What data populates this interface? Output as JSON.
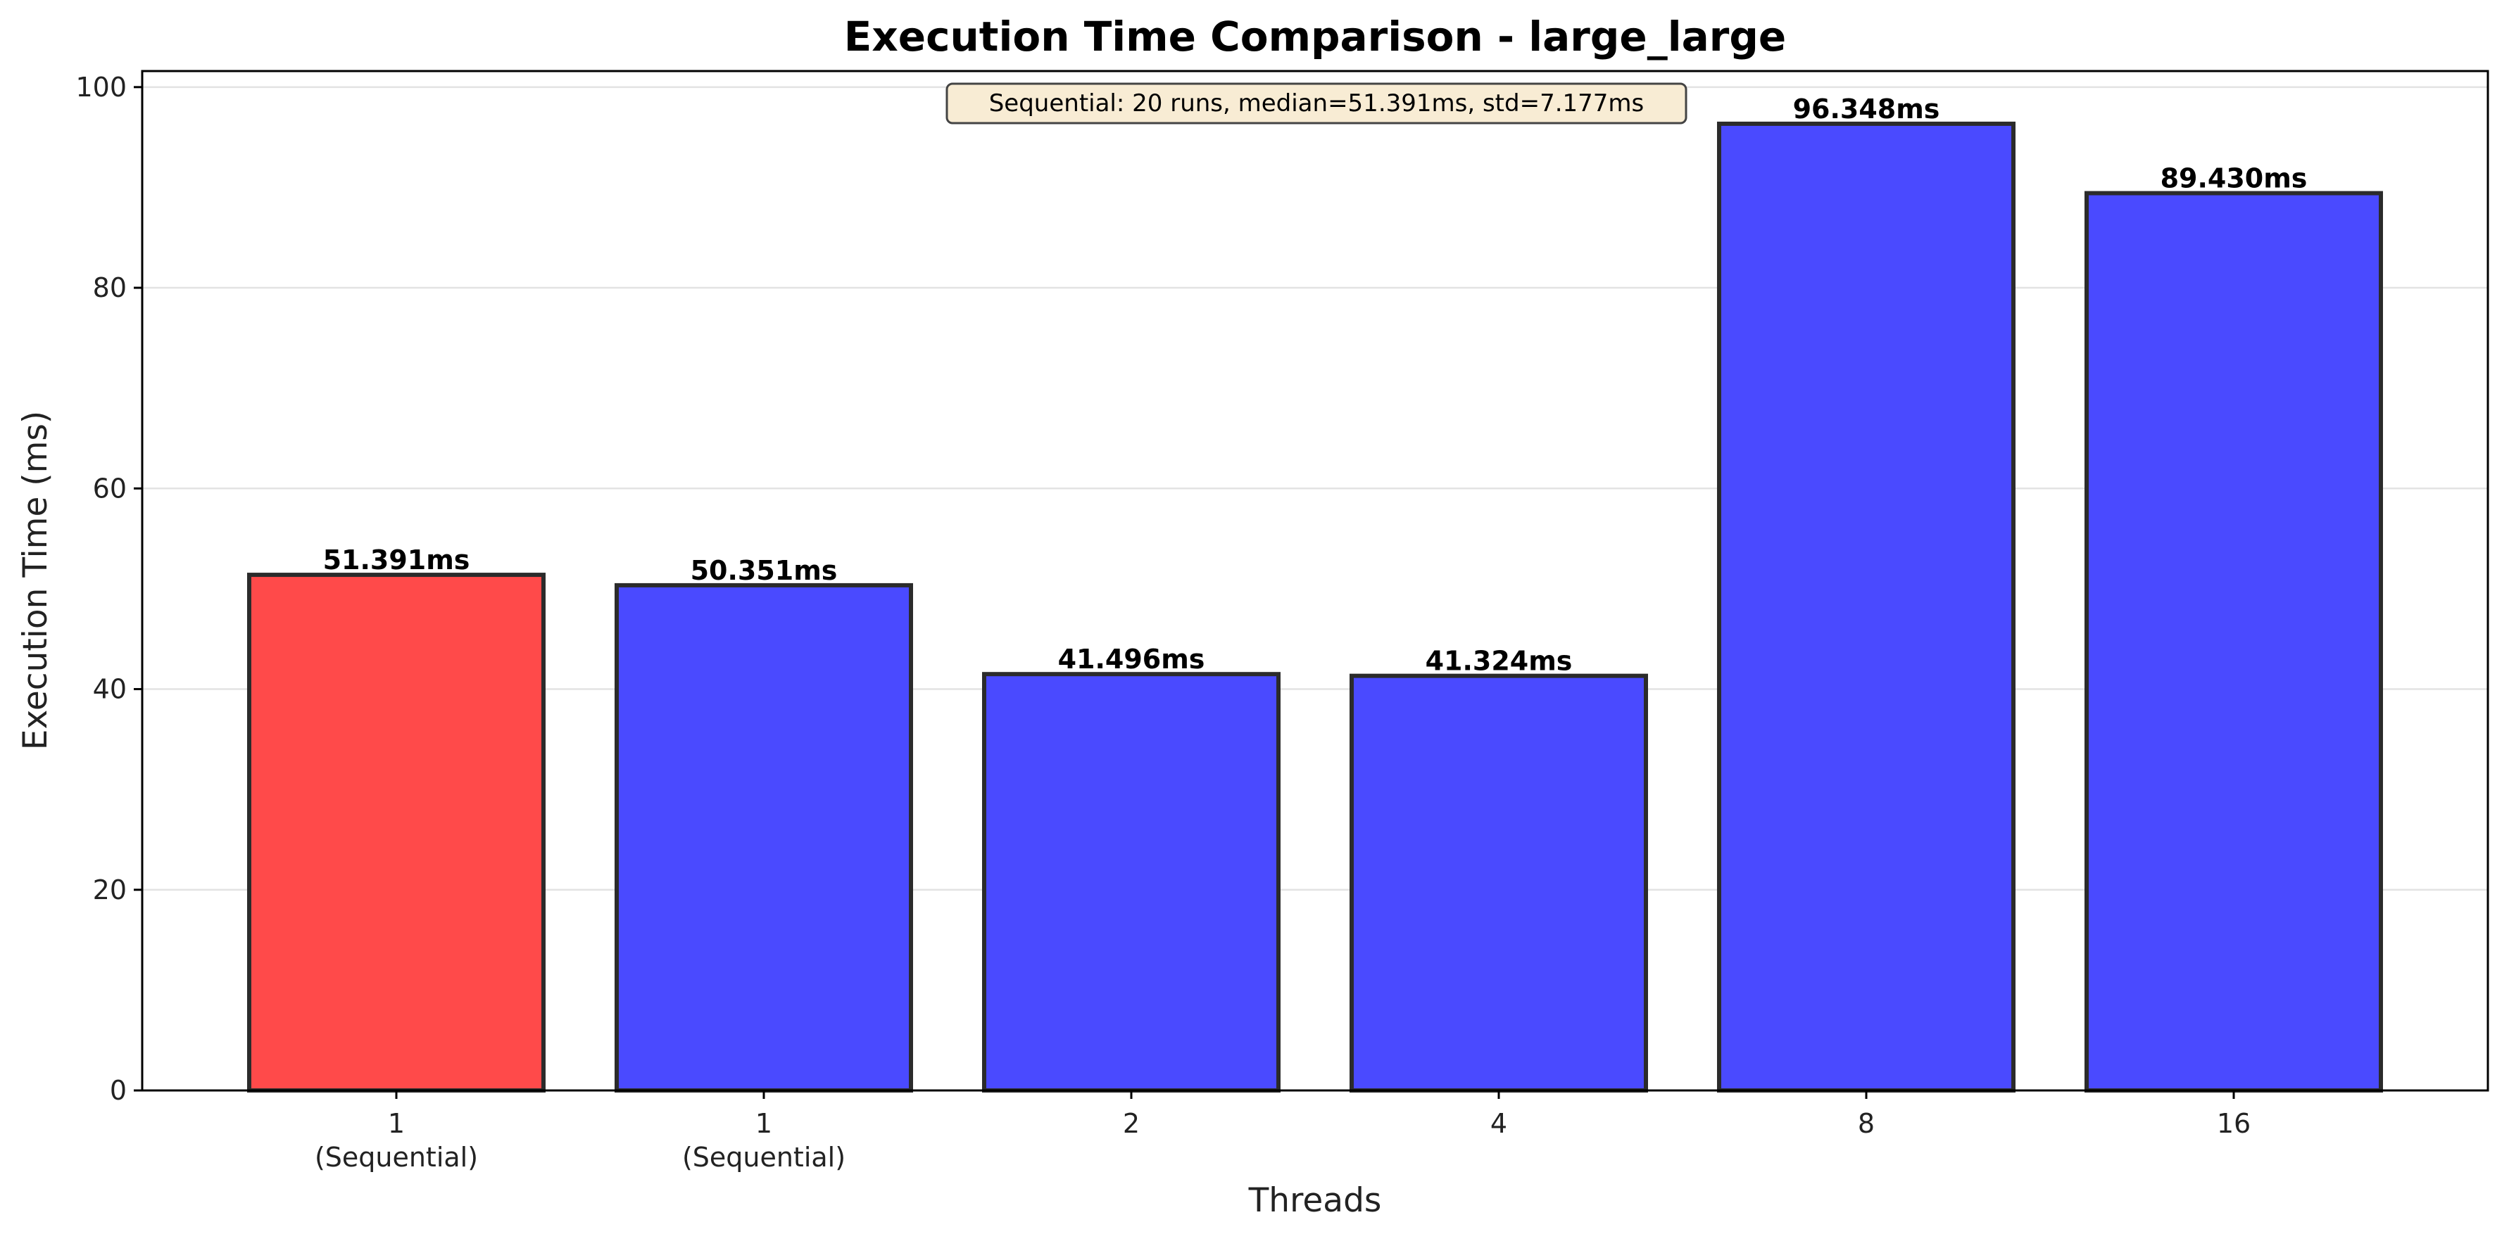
{
  "chart_data": {
    "type": "bar",
    "title": "Execution Time Comparison - large_large",
    "xlabel": "Threads",
    "ylabel": "Execution Time (ms)",
    "ylim": [
      0,
      100
    ],
    "yticks": [
      0,
      20,
      40,
      60,
      80,
      100
    ],
    "grid": "horizontal",
    "categories": [
      "1\n(Sequential)",
      "1\n(Sequential)",
      "2",
      "4",
      "8",
      "16"
    ],
    "values": [
      51.391,
      50.351,
      41.496,
      41.324,
      96.348,
      89.43
    ],
    "value_labels": [
      "51.391ms",
      "50.351ms",
      "41.496ms",
      "41.324ms",
      "96.348ms",
      "89.430ms"
    ],
    "bar_colors": [
      "#ff4a4a",
      "#4a4aff",
      "#4a4aff",
      "#4a4aff",
      "#4a4aff",
      "#4a4aff"
    ],
    "bar_edge_color": "#2b2b2b",
    "annotation": "Sequential: 20 runs, median=51.391ms, std=7.177ms",
    "annotation_bg": "#f8ecd4"
  }
}
